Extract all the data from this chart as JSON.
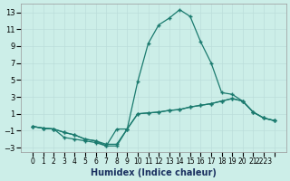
{
  "xlabel": "Humidex (Indice chaleur)",
  "x": [
    0,
    1,
    2,
    3,
    4,
    5,
    6,
    7,
    8,
    9,
    10,
    11,
    12,
    13,
    14,
    15,
    16,
    17,
    18,
    19,
    20,
    21,
    22,
    23
  ],
  "xtick_labels": [
    "0",
    "1",
    "2",
    "3",
    "4",
    "5",
    "6",
    "7",
    "8",
    "9",
    "10",
    "11",
    "12",
    "13",
    "14",
    "15",
    "16",
    "17",
    "18",
    "19",
    "20",
    "21",
    "2223",
    ""
  ],
  "line1": [
    -0.5,
    -0.7,
    -0.8,
    -1.2,
    -1.5,
    -2.0,
    -2.2,
    -2.8,
    -2.8,
    -0.8,
    1.0,
    1.1,
    1.2,
    1.4,
    1.5,
    1.8,
    2.0,
    2.2,
    2.5,
    2.8,
    2.5,
    1.2,
    0.5,
    0.2
  ],
  "line2": [
    -0.5,
    -0.7,
    -0.8,
    -1.8,
    -2.0,
    -2.2,
    -2.4,
    -2.8,
    -0.8,
    -0.8,
    4.8,
    9.3,
    11.5,
    12.3,
    13.3,
    12.5,
    9.5,
    7.0,
    3.5,
    3.3,
    2.5,
    1.2,
    0.5,
    0.2
  ],
  "line3": [
    -0.5,
    -0.7,
    -0.8,
    -1.2,
    -1.5,
    -2.0,
    -2.2,
    -2.6,
    -2.6,
    -0.8,
    1.0,
    1.1,
    1.2,
    1.4,
    1.5,
    1.8,
    2.0,
    2.2,
    2.5,
    2.8,
    2.5,
    1.2,
    0.5,
    0.2
  ],
  "bg_color": "#cceee8",
  "grid_color": "#bbddda",
  "line_color": "#1a7a6e",
  "ylim": [
    -3.5,
    14
  ],
  "yticks": [
    -3,
    -1,
    1,
    3,
    5,
    7,
    9,
    11,
    13
  ],
  "marker": "+"
}
